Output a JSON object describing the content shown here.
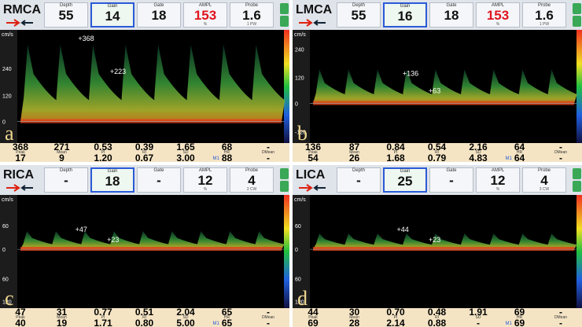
{
  "panels": [
    {
      "vessel": "RMCA",
      "letter": "a",
      "header": [
        {
          "label": "Depth",
          "value": "55"
        },
        {
          "label": "Gain",
          "value": "14"
        },
        {
          "label": "Gate",
          "value": "18"
        },
        {
          "label": "AMPL",
          "value": "153",
          "unit": "%"
        },
        {
          "label": "Probe",
          "value": "1.6",
          "unit": "1 PW"
        }
      ],
      "axis_unit": "cm/s",
      "axis_ticks": [
        "240",
        "120",
        "0"
      ],
      "annotations": [
        "+368",
        "+223"
      ],
      "stats": {
        "labels": [
          "Peak",
          "Mean",
          "PI",
          "RI",
          "SD",
          "HR",
          "DMean"
        ],
        "marker": "M1",
        "rows": [
          [
            "368",
            "271",
            "0.53",
            "0.39",
            "1.65",
            "68",
            "-"
          ],
          [
            "17",
            "9",
            "1.20",
            "0.67",
            "3.00",
            "88",
            "-"
          ]
        ]
      }
    },
    {
      "vessel": "LMCA",
      "letter": "b",
      "header": [
        {
          "label": "Depth",
          "value": "55"
        },
        {
          "label": "Gain",
          "value": "16"
        },
        {
          "label": "Gate",
          "value": "18"
        },
        {
          "label": "AMPL",
          "value": "153",
          "unit": "%"
        },
        {
          "label": "Probe",
          "value": "1.6",
          "unit": "1 PW"
        }
      ],
      "axis_unit": "cm/s",
      "axis_ticks": [
        "240",
        "120",
        "0",
        "-120"
      ],
      "annotations": [
        "+136",
        "+63"
      ],
      "stats": {
        "labels": [
          "Peak",
          "Mean",
          "PI",
          "RI",
          "SD",
          "HR",
          "DMean"
        ],
        "marker": "M1",
        "rows": [
          [
            "136",
            "87",
            "0.84",
            "0.54",
            "2.16",
            "64",
            "-"
          ],
          [
            "54",
            "26",
            "1.68",
            "0.79",
            "4.83",
            "64",
            "-"
          ]
        ]
      }
    },
    {
      "vessel": "RICA",
      "letter": "c",
      "header": [
        {
          "label": "Depth",
          "value": "-"
        },
        {
          "label": "Gain",
          "value": "18"
        },
        {
          "label": "Gate",
          "value": "-"
        },
        {
          "label": "AMPL",
          "value": "12",
          "unit": "%"
        },
        {
          "label": "Probe",
          "value": "4",
          "unit": "3 CW"
        }
      ],
      "axis_unit": "cm/s",
      "axis_ticks": [
        "60",
        "0",
        "60",
        "120"
      ],
      "annotations": [
        "+47",
        "+23"
      ],
      "stats": {
        "labels": [
          "Peak",
          "Mean",
          "PI",
          "RI",
          "SD",
          "HR",
          "DMean"
        ],
        "marker": "M1",
        "rows": [
          [
            "47",
            "31",
            "0.77",
            "0.51",
            "2.04",
            "65",
            "-"
          ],
          [
            "40",
            "19",
            "1.71",
            "0.80",
            "5.00",
            "65",
            "-"
          ]
        ]
      }
    },
    {
      "vessel": "LICA",
      "letter": "d",
      "header": [
        {
          "label": "Depth",
          "value": "-"
        },
        {
          "label": "Gain",
          "value": "25"
        },
        {
          "label": "Gate",
          "value": "-"
        },
        {
          "label": "AMPL",
          "value": "12",
          "unit": "%"
        },
        {
          "label": "Probe",
          "value": "4",
          "unit": "3 CW"
        }
      ],
      "axis_unit": "cm/s",
      "axis_ticks": [
        "60",
        "0",
        "60",
        "120"
      ],
      "annotations": [
        "+44",
        "+23"
      ],
      "stats": {
        "labels": [
          "Peak",
          "Mean",
          "PI",
          "RI",
          "SD",
          "HR",
          "DMean"
        ],
        "marker": "M1",
        "rows": [
          [
            "44",
            "30",
            "0.70",
            "0.48",
            "1.91",
            "69",
            "-"
          ],
          [
            "69",
            "28",
            "2.14",
            "0.88",
            "-",
            "69",
            "-"
          ]
        ]
      }
    }
  ]
}
